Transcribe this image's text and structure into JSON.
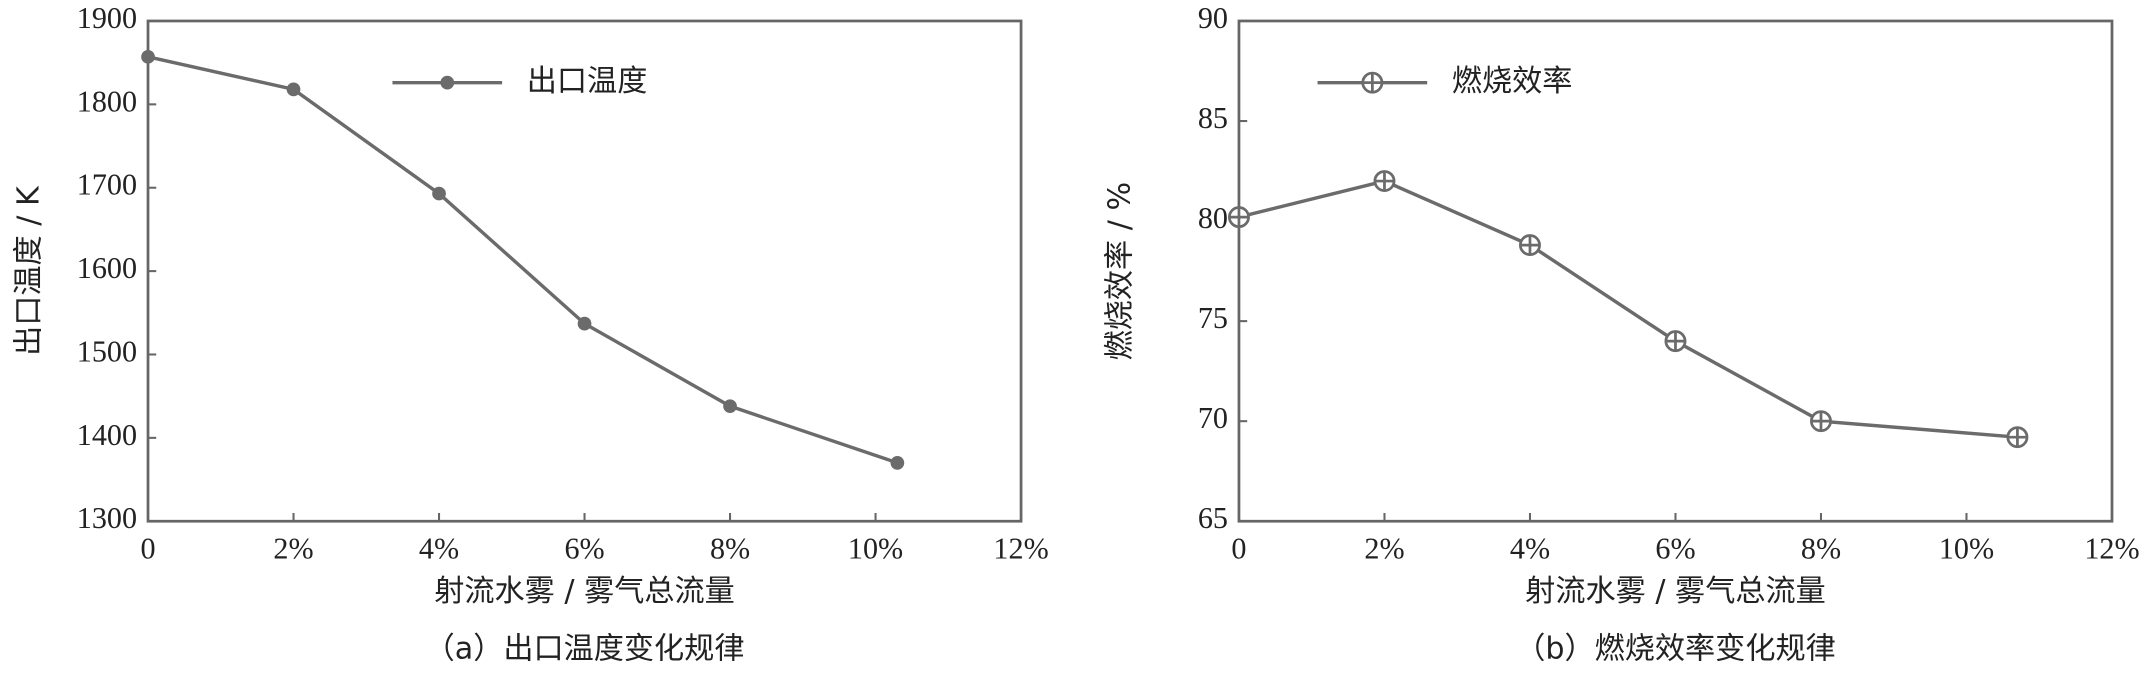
{
  "chart_data": [
    {
      "type": "line",
      "caption": "（a）出口温度变化规律",
      "xlabel": "射流水雾 / 雾气总流量",
      "ylabel": "出口温度 / K",
      "x": [
        0,
        2,
        4,
        6,
        8,
        10.3
      ],
      "series": [
        {
          "name": "出口温度",
          "color": "#6b6b6b",
          "marker": "filled-circle",
          "values": [
            1857,
            1818,
            1693,
            1537,
            1438,
            1370
          ]
        }
      ],
      "xlim": [
        0,
        12
      ],
      "xticks": [
        0,
        {
          "value": 2,
          "label": "2%"
        },
        {
          "value": 4,
          "label": "4%"
        },
        {
          "value": 6,
          "label": "6%"
        },
        {
          "value": 8,
          "label": "8%"
        },
        {
          "value": 10,
          "label": "10%"
        },
        {
          "value": 12,
          "label": "12%"
        }
      ],
      "ylim": [
        1300,
        1900
      ],
      "yticks": [
        1300,
        1400,
        1500,
        1600,
        1700,
        1800,
        1900
      ],
      "legend": "upper center"
    },
    {
      "type": "line",
      "caption": "（b）燃烧效率变化规律",
      "xlabel": "射流水雾 / 雾气总流量",
      "ylabel": "燃烧效率 / %",
      "x": [
        0,
        2,
        4,
        6,
        8,
        10.7
      ],
      "series": [
        {
          "name": "燃烧效率",
          "color": "#6b6b6b",
          "marker": "circle-plus",
          "values": [
            80.2,
            82.0,
            78.8,
            74.0,
            70.0,
            69.2
          ]
        }
      ],
      "xlim": [
        0,
        12
      ],
      "xticks": [
        0,
        {
          "value": 2,
          "label": "2%"
        },
        {
          "value": 4,
          "label": "4%"
        },
        {
          "value": 6,
          "label": "6%"
        },
        {
          "value": 8,
          "label": "8%"
        },
        {
          "value": 10,
          "label": "10%"
        },
        {
          "value": 12,
          "label": "12%"
        }
      ],
      "ylim": [
        65,
        90
      ],
      "yticks": [
        65,
        70,
        75,
        80,
        85,
        90
      ],
      "legend": "upper left"
    }
  ]
}
